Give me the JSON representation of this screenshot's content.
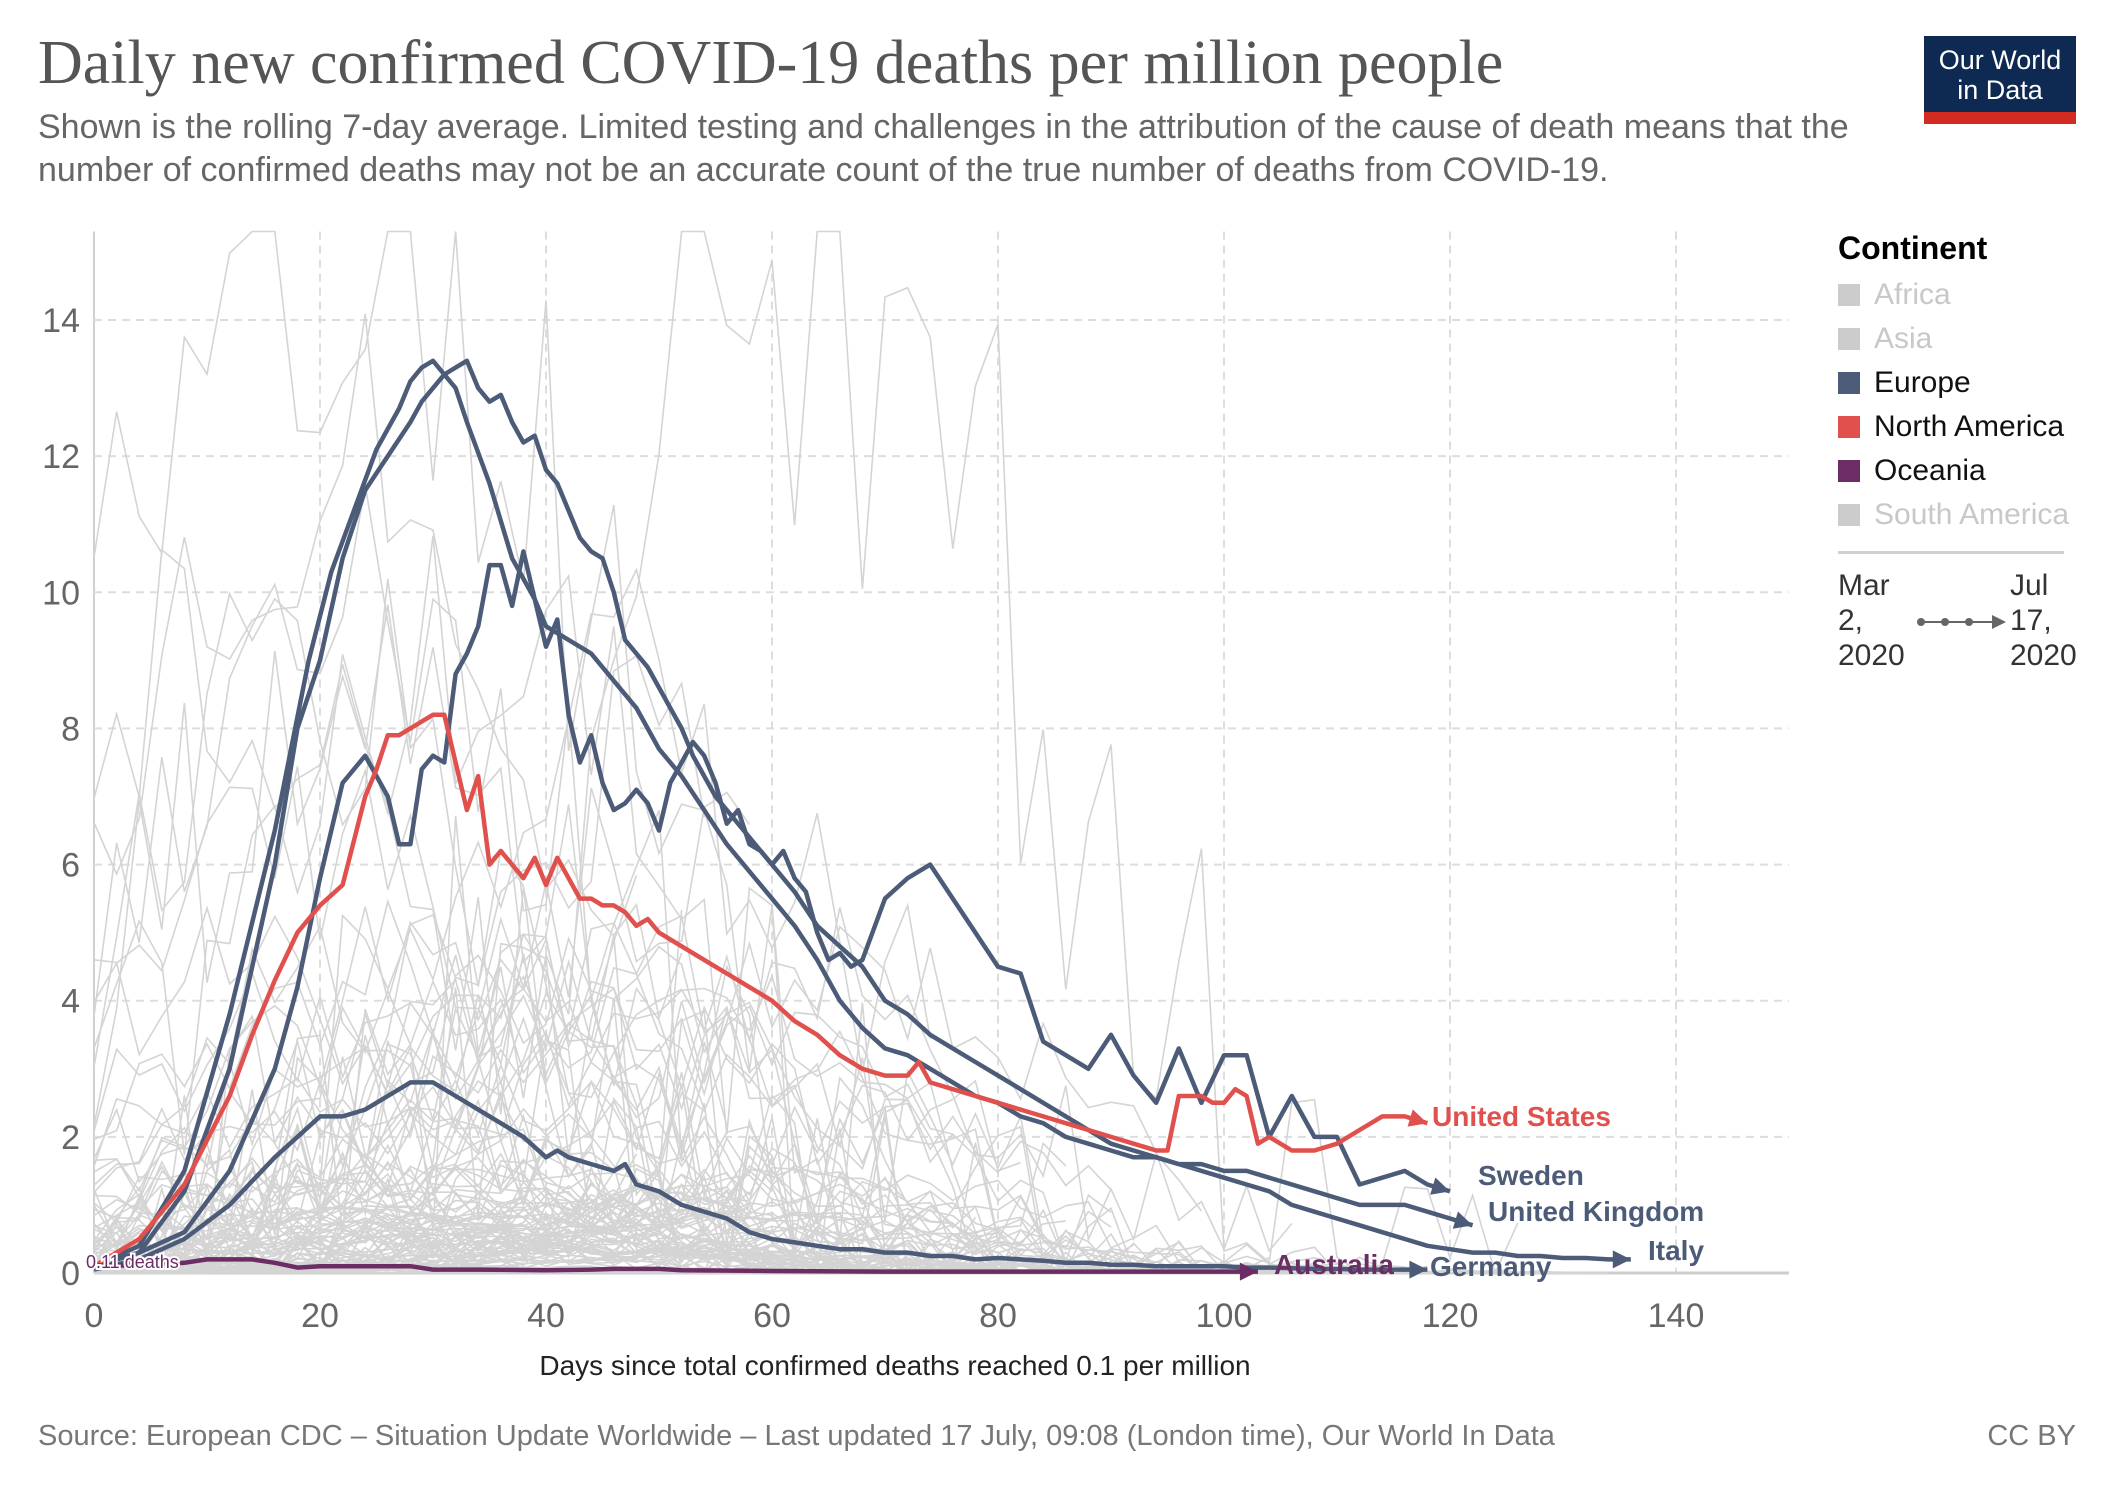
{
  "header": {
    "title": "Daily new confirmed COVID-19 deaths per million people",
    "subtitle": "Shown is the rolling 7-day average. Limited testing and challenges in the attribution of the cause of death means that the number of confirmed deaths may not be an accurate count of the true number of deaths from COVID-19.",
    "logo_line1": "Our World",
    "logo_line2": "in Data"
  },
  "footer": {
    "source": "Source: European CDC – Situation Update Worldwide – Last updated 17 July, 09:08 (London time), Our World In Data",
    "license": "CC BY"
  },
  "legend": {
    "title": "Continent",
    "items": [
      {
        "label": "Africa",
        "color": "#cccccc",
        "active": false
      },
      {
        "label": "Asia",
        "color": "#cccccc",
        "active": false
      },
      {
        "label": "Europe",
        "color": "#4c5c78",
        "active": true
      },
      {
        "label": "North America",
        "color": "#e0504d",
        "active": true
      },
      {
        "label": "Oceania",
        "color": "#6b2d64",
        "active": true
      },
      {
        "label": "South America",
        "color": "#cccccc",
        "active": false
      }
    ]
  },
  "timeline": {
    "start_line1": "Mar",
    "start_line2": "2,",
    "start_line3": "2020",
    "end_line1": "Jul",
    "end_line2": "17,",
    "end_line3": "2020"
  },
  "chart_data": {
    "type": "line",
    "title": "Daily new confirmed COVID-19 deaths per million people",
    "xlabel": "Days since total confirmed deaths reached 0.1 per million",
    "ylabel": "",
    "xlim": [
      0,
      150
    ],
    "ylim": [
      0,
      15.3
    ],
    "x_ticks": [
      0,
      20,
      40,
      60,
      80,
      100,
      120,
      140
    ],
    "y_ticks": [
      0,
      2,
      4,
      6,
      8,
      10,
      12,
      14
    ],
    "grid": true,
    "legend_position": "right",
    "annotation": "0.11 deaths",
    "series": [
      {
        "name": "Italy",
        "continent": "Europe",
        "color": "#4c5c78",
        "x": [
          0,
          4,
          8,
          12,
          16,
          19,
          21,
          23,
          25,
          27,
          28,
          29,
          30,
          31,
          32,
          33,
          35,
          37,
          39,
          40,
          42,
          44,
          46,
          48,
          50,
          52,
          54,
          56,
          58,
          60,
          62,
          64,
          66,
          68,
          70,
          72,
          74,
          76,
          78,
          80,
          82,
          84,
          86,
          88,
          90,
          92,
          94,
          96,
          98,
          100,
          102,
          104,
          106,
          108,
          110,
          112,
          114,
          116,
          118,
          120,
          122,
          124,
          126,
          128,
          130,
          132,
          134,
          136
        ],
        "y": [
          0.1,
          0.4,
          1.5,
          3.8,
          6.5,
          9.0,
          10.3,
          11.2,
          12.1,
          12.7,
          13.1,
          13.3,
          13.4,
          13.2,
          13.0,
          12.5,
          11.6,
          10.5,
          9.9,
          9.5,
          9.3,
          9.1,
          8.7,
          8.3,
          7.7,
          7.3,
          6.8,
          6.3,
          5.9,
          5.5,
          5.1,
          4.6,
          4.0,
          3.6,
          3.3,
          3.2,
          3.0,
          2.8,
          2.6,
          2.5,
          2.3,
          2.2,
          2.0,
          1.9,
          1.8,
          1.7,
          1.7,
          1.6,
          1.5,
          1.4,
          1.3,
          1.2,
          1.0,
          0.9,
          0.8,
          0.7,
          0.6,
          0.5,
          0.4,
          0.35,
          0.3,
          0.3,
          0.25,
          0.25,
          0.22,
          0.22,
          0.2,
          0.2
        ]
      },
      {
        "name": "United Kingdom",
        "continent": "Europe",
        "color": "#4c5c78",
        "x": [
          0,
          4,
          8,
          12,
          16,
          18,
          20,
          22,
          24,
          26,
          28,
          29,
          30,
          31,
          32,
          33,
          34,
          35,
          36,
          37,
          38,
          39,
          40,
          41,
          42,
          43,
          44,
          45,
          46,
          47,
          48,
          49,
          50,
          51,
          52,
          53,
          54,
          55,
          56,
          58,
          60,
          62,
          64,
          66,
          68,
          70,
          72,
          74,
          76,
          78,
          80,
          82,
          84,
          86,
          88,
          90,
          92,
          94,
          96,
          98,
          100,
          102,
          104,
          106,
          108,
          110,
          112,
          114,
          116,
          118,
          120,
          122
        ],
        "y": [
          0.1,
          0.3,
          1.2,
          3.0,
          6.0,
          8.0,
          9.0,
          10.5,
          11.5,
          12.0,
          12.5,
          12.8,
          13.0,
          13.2,
          13.3,
          13.4,
          13.0,
          12.8,
          12.9,
          12.5,
          12.2,
          12.3,
          11.8,
          11.6,
          11.2,
          10.8,
          10.6,
          10.5,
          10.0,
          9.3,
          9.1,
          8.9,
          8.6,
          8.3,
          8.0,
          7.6,
          7.3,
          7.0,
          6.8,
          6.4,
          6.0,
          5.6,
          5.1,
          4.8,
          4.5,
          4.0,
          3.8,
          3.5,
          3.3,
          3.1,
          2.9,
          2.7,
          2.5,
          2.3,
          2.1,
          1.9,
          1.8,
          1.7,
          1.6,
          1.6,
          1.5,
          1.5,
          1.4,
          1.3,
          1.2,
          1.1,
          1.0,
          1.0,
          1.0,
          0.9,
          0.8,
          0.7
        ]
      },
      {
        "name": "Sweden",
        "continent": "Europe",
        "color": "#4c5c78",
        "x": [
          0,
          4,
          8,
          12,
          16,
          18,
          20,
          22,
          24,
          26,
          27,
          28,
          29,
          30,
          31,
          32,
          33,
          34,
          35,
          36,
          37,
          38,
          39,
          40,
          41,
          42,
          43,
          44,
          45,
          46,
          47,
          48,
          49,
          50,
          51,
          52,
          53,
          54,
          55,
          56,
          57,
          58,
          59,
          60,
          61,
          62,
          63,
          64,
          65,
          66,
          67,
          68,
          70,
          72,
          74,
          76,
          78,
          80,
          82,
          84,
          86,
          88,
          90,
          92,
          94,
          96,
          98,
          100,
          102,
          104,
          106,
          108,
          110,
          112,
          114,
          116,
          118,
          120
        ],
        "y": [
          0.1,
          0.3,
          0.6,
          1.5,
          3.0,
          4.2,
          5.8,
          7.2,
          7.6,
          7.0,
          6.3,
          6.3,
          7.4,
          7.6,
          7.5,
          8.8,
          9.1,
          9.5,
          10.4,
          10.4,
          9.8,
          10.6,
          9.9,
          9.2,
          9.6,
          8.2,
          7.5,
          7.9,
          7.2,
          6.8,
          6.9,
          7.1,
          6.9,
          6.5,
          7.2,
          7.5,
          7.8,
          7.6,
          7.2,
          6.6,
          6.8,
          6.3,
          6.2,
          6.0,
          6.2,
          5.8,
          5.6,
          5.0,
          4.6,
          4.7,
          4.5,
          4.6,
          5.5,
          5.8,
          6.0,
          5.5,
          5.0,
          4.5,
          4.4,
          3.4,
          3.2,
          3.0,
          3.5,
          2.9,
          2.5,
          3.3,
          2.5,
          3.2,
          3.2,
          2.0,
          2.6,
          2.0,
          2.0,
          1.3,
          1.4,
          1.5,
          1.3,
          1.2
        ]
      },
      {
        "name": "Germany",
        "continent": "Europe",
        "color": "#4c5c78",
        "x": [
          0,
          4,
          8,
          12,
          16,
          18,
          20,
          22,
          24,
          26,
          28,
          30,
          32,
          34,
          36,
          38,
          40,
          41,
          42,
          44,
          46,
          47,
          48,
          50,
          52,
          54,
          56,
          58,
          60,
          62,
          64,
          66,
          68,
          70,
          72,
          74,
          76,
          78,
          80,
          82,
          84,
          86,
          88,
          90,
          92,
          94,
          96,
          98,
          100,
          102,
          104,
          106,
          108,
          110,
          112,
          114,
          116,
          118
        ],
        "y": [
          0.05,
          0.2,
          0.5,
          1.0,
          1.7,
          2.0,
          2.3,
          2.3,
          2.4,
          2.6,
          2.8,
          2.8,
          2.6,
          2.4,
          2.2,
          2.0,
          1.7,
          1.8,
          1.7,
          1.6,
          1.5,
          1.6,
          1.3,
          1.2,
          1.0,
          0.9,
          0.8,
          0.6,
          0.5,
          0.45,
          0.4,
          0.35,
          0.35,
          0.3,
          0.3,
          0.25,
          0.25,
          0.2,
          0.22,
          0.2,
          0.18,
          0.15,
          0.15,
          0.12,
          0.12,
          0.1,
          0.1,
          0.1,
          0.1,
          0.08,
          0.08,
          0.07,
          0.06,
          0.06,
          0.05,
          0.05,
          0.05,
          0.05
        ]
      },
      {
        "name": "United States",
        "continent": "North America",
        "color": "#e0504d",
        "x": [
          0,
          4,
          8,
          12,
          14,
          16,
          18,
          20,
          22,
          24,
          25,
          26,
          27,
          28,
          29,
          30,
          31,
          32,
          33,
          34,
          35,
          36,
          37,
          38,
          39,
          40,
          41,
          42,
          43,
          44,
          45,
          46,
          47,
          48,
          49,
          50,
          52,
          54,
          56,
          58,
          60,
          62,
          64,
          66,
          68,
          70,
          72,
          73,
          74,
          76,
          78,
          80,
          82,
          84,
          86,
          88,
          90,
          92,
          94,
          95,
          96,
          98,
          99,
          100,
          101,
          102,
          103,
          104,
          106,
          108,
          110,
          112,
          114,
          116,
          118
        ],
        "y": [
          0.1,
          0.5,
          1.3,
          2.6,
          3.5,
          4.3,
          5.0,
          5.4,
          5.7,
          7.0,
          7.4,
          7.9,
          7.9,
          8.0,
          8.1,
          8.2,
          8.2,
          7.5,
          6.8,
          7.3,
          6.0,
          6.2,
          6.0,
          5.8,
          6.1,
          5.7,
          6.1,
          5.8,
          5.5,
          5.5,
          5.4,
          5.4,
          5.3,
          5.1,
          5.2,
          5.0,
          4.8,
          4.6,
          4.4,
          4.2,
          4.0,
          3.7,
          3.5,
          3.2,
          3.0,
          2.9,
          2.9,
          3.1,
          2.8,
          2.7,
          2.6,
          2.5,
          2.4,
          2.3,
          2.2,
          2.1,
          2.0,
          1.9,
          1.8,
          1.8,
          2.6,
          2.6,
          2.5,
          2.5,
          2.7,
          2.6,
          1.9,
          2.0,
          1.8,
          1.8,
          1.9,
          2.1,
          2.3,
          2.3,
          2.2
        ]
      },
      {
        "name": "Australia",
        "continent": "Oceania",
        "color": "#6b2d64",
        "x": [
          0,
          4,
          8,
          10,
          12,
          14,
          16,
          18,
          20,
          24,
          28,
          30,
          34,
          40,
          44,
          46,
          50,
          52,
          60,
          70,
          80,
          90,
          95,
          100,
          103
        ],
        "y": [
          0.11,
          0.11,
          0.15,
          0.2,
          0.2,
          0.2,
          0.15,
          0.08,
          0.1,
          0.1,
          0.1,
          0.05,
          0.05,
          0.04,
          0.05,
          0.06,
          0.06,
          0.04,
          0.03,
          0.02,
          0.02,
          0.02,
          0.02,
          0.02,
          0.02
        ]
      }
    ],
    "background_series_note": "Other countries shown as light gray (#d4d4d4) lines"
  }
}
